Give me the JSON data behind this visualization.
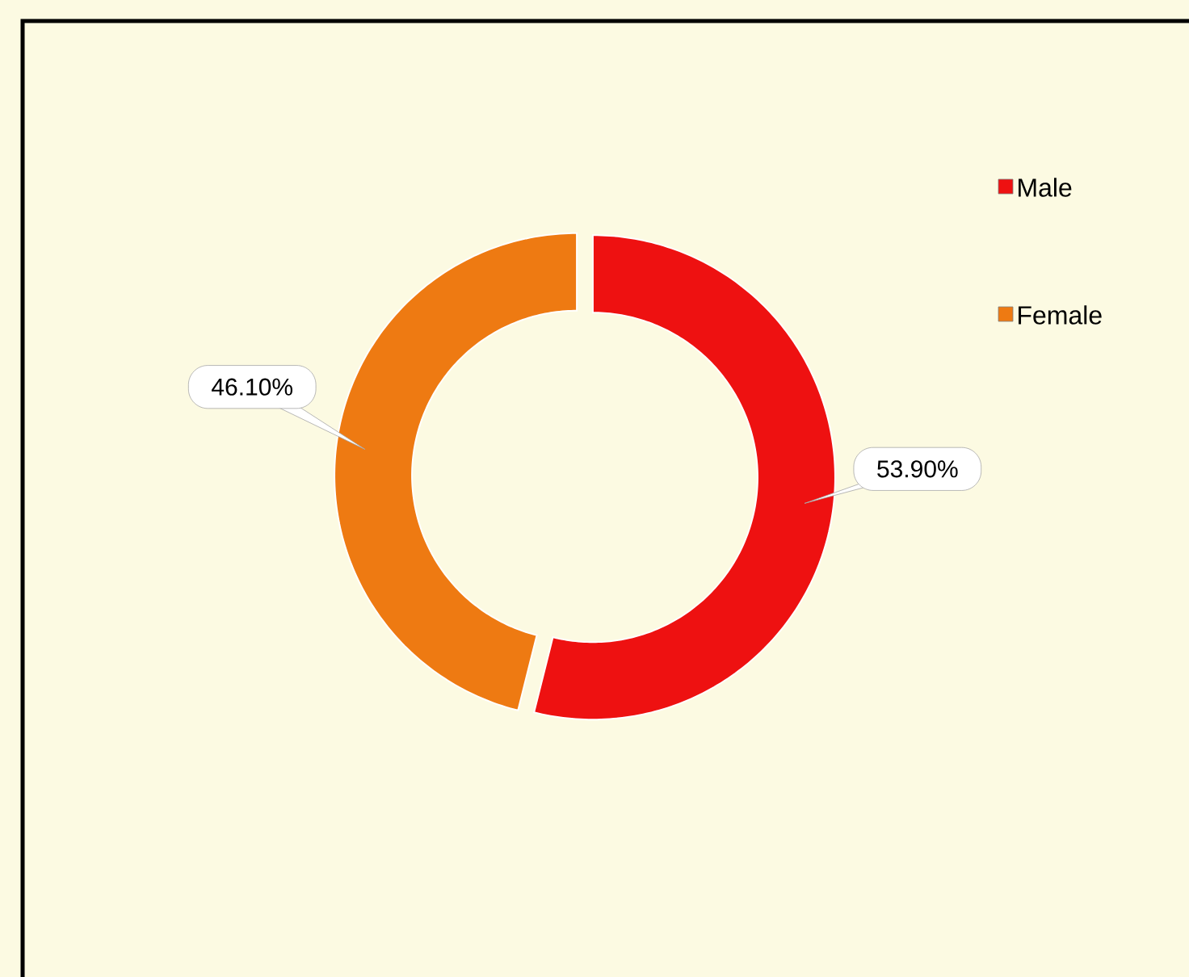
{
  "chart_data": {
    "type": "donut",
    "categories": [
      "Male",
      "Female"
    ],
    "values": [
      53.9,
      46.1
    ],
    "colors": [
      "#ee1111",
      "#ee7a12"
    ],
    "value_labels": [
      "53.90%",
      "46.10%"
    ],
    "legend": "right"
  }
}
